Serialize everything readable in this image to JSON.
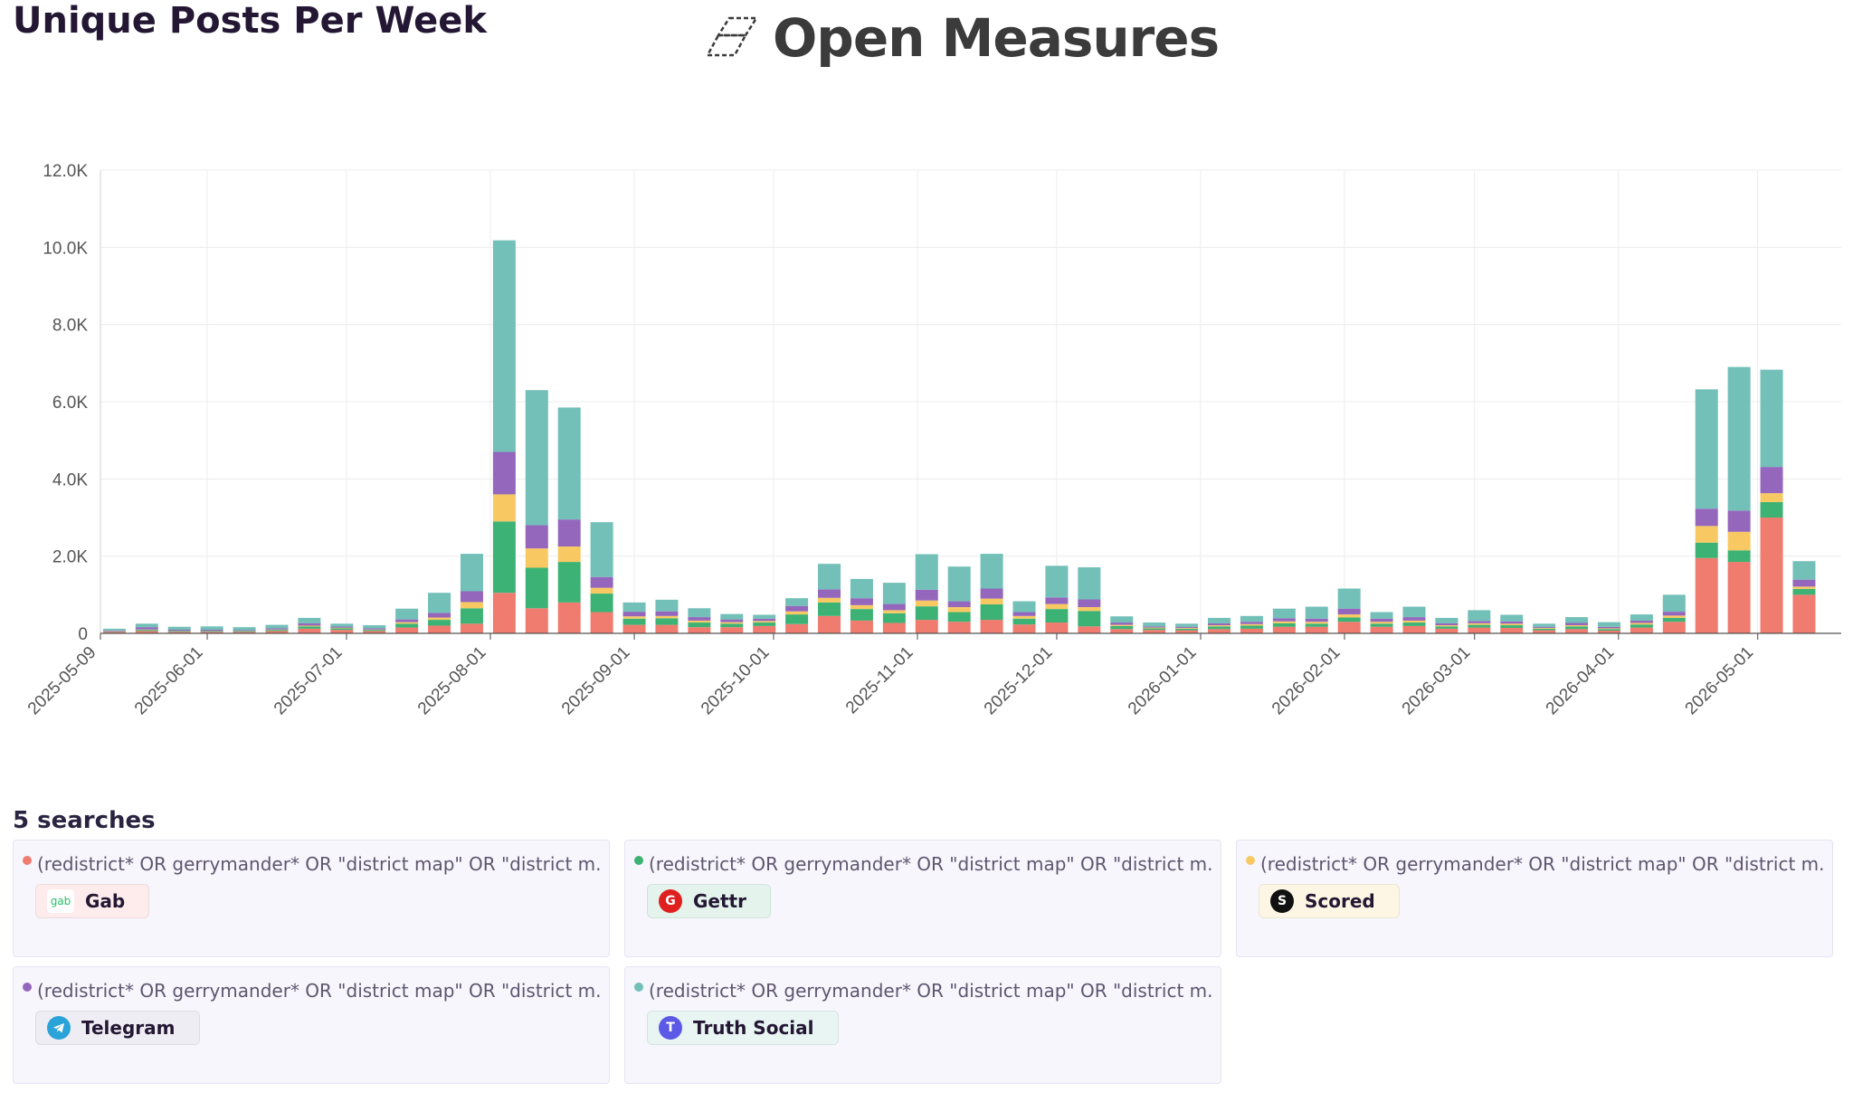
{
  "page": {
    "title": "Unique Posts Per Week"
  },
  "brand": {
    "name": "Open Measures"
  },
  "colors": {
    "gab": "#f07b6f",
    "gettr": "#3cb375",
    "scored": "#f8c963",
    "telegram": "#9467bd",
    "truth_social": "#72c0b8",
    "grid": "#ececec",
    "text": "#231733"
  },
  "chart_data": {
    "type": "bar",
    "stacked": true,
    "title": "Unique Posts Per Week",
    "xlabel": "",
    "ylabel": "",
    "ylim": [
      0,
      12000
    ],
    "yticks": [
      "0",
      "2.0K",
      "4.0K",
      "6.0K",
      "8.0K",
      "10.0K",
      "12.0K"
    ],
    "xticks": [
      {
        "label": "2025-05-09",
        "date": "2025-05-09"
      },
      {
        "label": "2025-06-01",
        "date": "2025-06-01"
      },
      {
        "label": "2025-07-01",
        "date": "2025-07-01"
      },
      {
        "label": "2025-08-01",
        "date": "2025-08-01"
      },
      {
        "label": "2025-09-01",
        "date": "2025-09-01"
      },
      {
        "label": "2025-10-01",
        "date": "2025-10-01"
      },
      {
        "label": "2025-11-01",
        "date": "2025-11-01"
      },
      {
        "label": "2025-12-01",
        "date": "2025-12-01"
      },
      {
        "label": "2026-01-01",
        "date": "2026-01-01"
      },
      {
        "label": "2026-02-01",
        "date": "2026-02-01"
      },
      {
        "label": "2026-03-01",
        "date": "2026-03-01"
      },
      {
        "label": "2026-04-01",
        "date": "2026-04-01"
      },
      {
        "label": "2026-05-01",
        "date": "2026-05-01"
      }
    ],
    "grid": true,
    "legend": "none",
    "categories": [
      "2025-05-12",
      "2025-05-19",
      "2025-05-26",
      "2025-06-02",
      "2025-06-09",
      "2025-06-16",
      "2025-06-23",
      "2025-06-30",
      "2025-07-07",
      "2025-07-14",
      "2025-07-21",
      "2025-07-28",
      "2025-08-04",
      "2025-08-11",
      "2025-08-18",
      "2025-08-25",
      "2025-09-01",
      "2025-09-08",
      "2025-09-15",
      "2025-09-22",
      "2025-09-29",
      "2025-10-06",
      "2025-10-13",
      "2025-10-20",
      "2025-10-27",
      "2025-11-03",
      "2025-11-10",
      "2025-11-17",
      "2025-11-24",
      "2025-12-01",
      "2025-12-08",
      "2025-12-15",
      "2025-12-22",
      "2025-12-29",
      "2026-01-05",
      "2026-01-12",
      "2026-01-19",
      "2026-01-26",
      "2026-02-02",
      "2026-02-09",
      "2026-02-16",
      "2026-02-23",
      "2026-03-02",
      "2026-03-09",
      "2026-03-16",
      "2026-03-23",
      "2026-03-30",
      "2026-04-06",
      "2026-04-13",
      "2026-04-20",
      "2026-04-27",
      "2026-05-04",
      "2026-05-11"
    ],
    "series": [
      {
        "name": "Gab",
        "color": "#f07b6f",
        "values": [
          40,
          60,
          40,
          40,
          40,
          60,
          120,
          90,
          60,
          150,
          200,
          250,
          1050,
          650,
          800,
          550,
          220,
          220,
          160,
          160,
          190,
          240,
          450,
          330,
          270,
          350,
          300,
          350,
          230,
          280,
          180,
          110,
          90,
          80,
          110,
          120,
          170,
          170,
          300,
          170,
          190,
          120,
          150,
          140,
          80,
          110,
          70,
          150,
          300,
          1950,
          1850,
          3000,
          1000
        ]
      },
      {
        "name": "Gettr",
        "color": "#3cb375",
        "values": [
          10,
          30,
          20,
          20,
          20,
          30,
          60,
          40,
          30,
          100,
          150,
          400,
          1850,
          1050,
          1050,
          480,
          160,
          170,
          120,
          90,
          90,
          250,
          350,
          300,
          250,
          350,
          250,
          400,
          150,
          350,
          400,
          80,
          40,
          40,
          70,
          80,
          90,
          80,
          110,
          80,
          90,
          60,
          70,
          70,
          40,
          70,
          40,
          80,
          100,
          400,
          300,
          400,
          150
        ]
      },
      {
        "name": "Scored",
        "color": "#f8c963",
        "values": [
          5,
          10,
          5,
          5,
          5,
          10,
          20,
          15,
          10,
          40,
          60,
          160,
          700,
          500,
          400,
          150,
          60,
          60,
          50,
          40,
          40,
          80,
          120,
          100,
          80,
          150,
          130,
          150,
          70,
          130,
          100,
          30,
          20,
          20,
          30,
          40,
          50,
          50,
          80,
          50,
          50,
          30,
          40,
          40,
          20,
          30,
          20,
          40,
          60,
          430,
          480,
          230,
          60
        ]
      },
      {
        "name": "Telegram",
        "color": "#9467bd",
        "values": [
          20,
          60,
          30,
          30,
          20,
          30,
          60,
          30,
          30,
          70,
          120,
          280,
          1100,
          600,
          700,
          280,
          120,
          120,
          90,
          70,
          60,
          140,
          220,
          180,
          160,
          280,
          150,
          260,
          100,
          170,
          200,
          60,
          30,
          30,
          50,
          60,
          80,
          80,
          150,
          80,
          90,
          50,
          60,
          60,
          30,
          60,
          40,
          60,
          100,
          450,
          550,
          680,
          180
        ]
      },
      {
        "name": "Truth Social",
        "color": "#72c0b8",
        "values": [
          45,
          90,
          75,
          85,
          75,
          90,
          140,
          75,
          80,
          280,
          520,
          970,
          5480,
          3500,
          2900,
          1420,
          240,
          300,
          230,
          140,
          100,
          200,
          660,
          500,
          550,
          920,
          900,
          900,
          280,
          820,
          830,
          160,
          100,
          80,
          140,
          150,
          250,
          310,
          520,
          170,
          270,
          140,
          280,
          170,
          80,
          150,
          120,
          160,
          440,
          3090,
          3720,
          2520,
          480
        ]
      }
    ]
  },
  "searches": {
    "title": "5 searches",
    "items": [
      {
        "query": "(redistrict* OR gerrymander* OR \"district map\" OR \"district m...",
        "platform": "Gab",
        "color": "#f07b6f",
        "icon": "gab-logo-icon",
        "icon_text": "gab"
      },
      {
        "query": "(redistrict* OR gerrymander* OR \"district map\" OR \"district m...",
        "platform": "Gettr",
        "color": "#3cb375",
        "icon": "gettr-logo-icon",
        "icon_text": "G"
      },
      {
        "query": "(redistrict* OR gerrymander* OR \"district map\" OR \"district m...",
        "platform": "Scored",
        "color": "#f8c963",
        "icon": "scored-logo-icon",
        "icon_text": "S"
      },
      {
        "query": "(redistrict* OR gerrymander* OR \"district map\" OR \"district m...",
        "platform": "Telegram",
        "color": "#9467bd",
        "icon": "telegram-logo-icon",
        "icon_text": ""
      },
      {
        "query": "(redistrict* OR gerrymander* OR \"district map\" OR \"district m...",
        "platform": "Truth Social",
        "color": "#72c0b8",
        "icon": "truth-social-logo-icon",
        "icon_text": "T"
      }
    ]
  }
}
